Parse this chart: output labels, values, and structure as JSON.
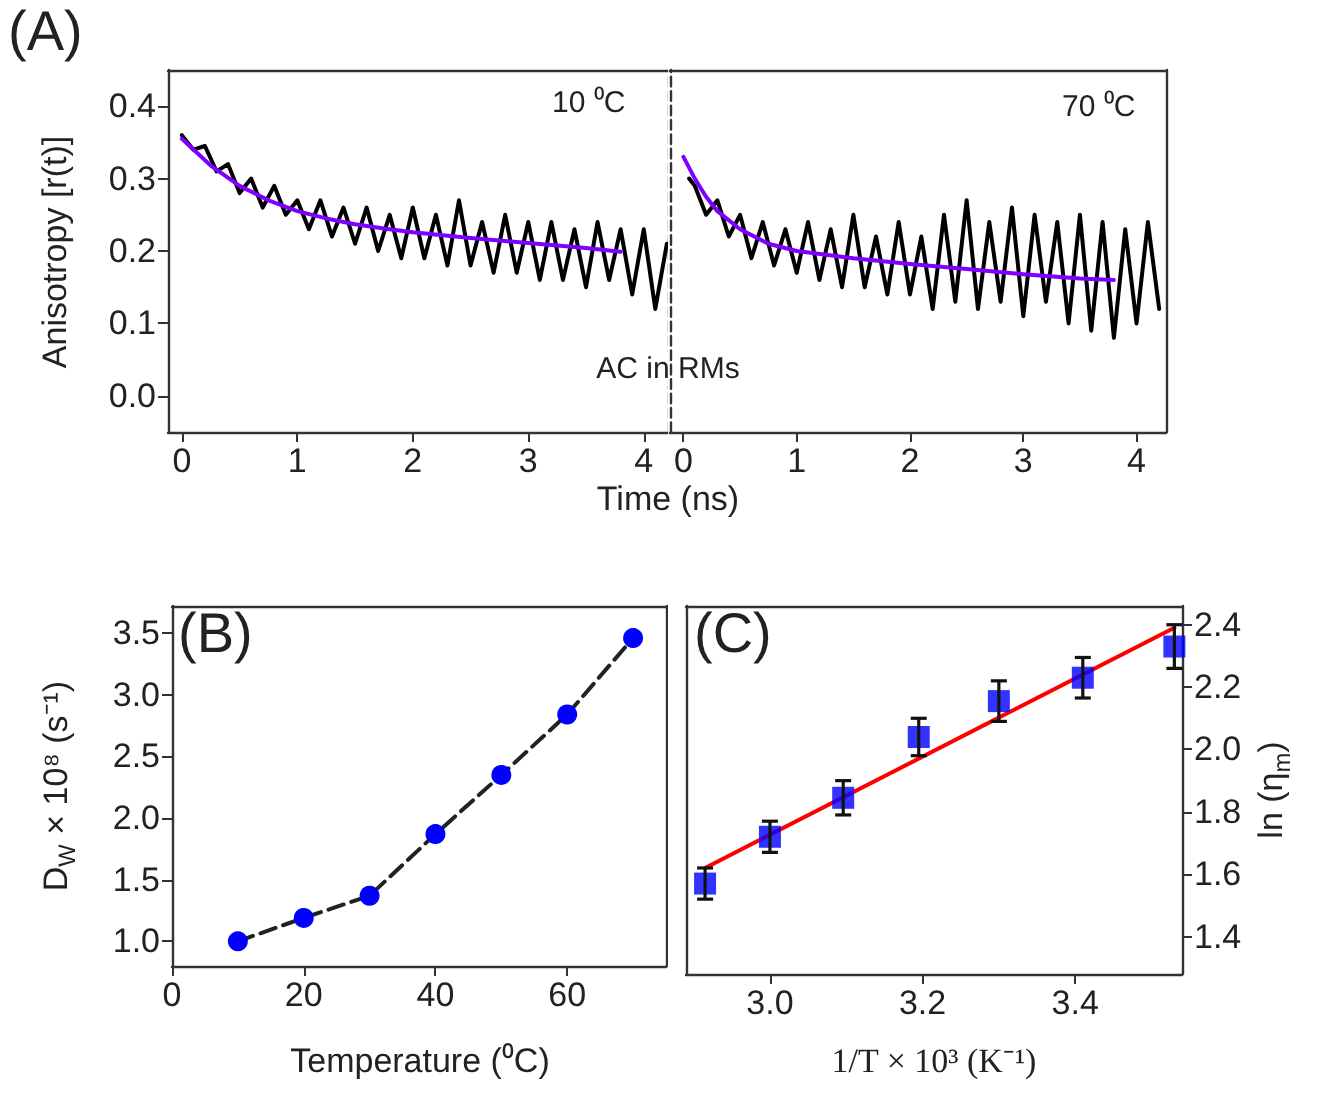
{
  "chart_data": [
    {
      "type": "line",
      "title": "(A)",
      "ylabel": "Anisotropy [r(t)]",
      "xlabel": "Time (ns)",
      "annotations": [
        "10 ⁰C",
        "AC in RMs"
      ],
      "xlim": [
        -0.12,
        4.21
      ],
      "xticks": [
        0,
        1,
        2,
        3,
        4
      ],
      "ylim": [
        -0.05,
        0.45
      ],
      "yticks": [
        {
          "value": 0,
          "label": "0.0"
        },
        0.1,
        0.2,
        0.3,
        0.4
      ],
      "marker": "none",
      "line_style": "solid",
      "series": [
        {
          "color": "#000000",
          "x": [
            0,
            0.1,
            0.2,
            0.3,
            0.4,
            0.5,
            0.6,
            0.7,
            0.8,
            0.9,
            1.0,
            1.1,
            1.2,
            1.3,
            1.4,
            1.5,
            1.6,
            1.7,
            1.8,
            1.9,
            2.0,
            2.1,
            2.2,
            2.3,
            2.4,
            2.5,
            2.6,
            2.7,
            2.8,
            2.9,
            3.0,
            3.1,
            3.2,
            3.3,
            3.4,
            3.5,
            3.6,
            3.7,
            3.8,
            3.9,
            4.0,
            4.1,
            4.2
          ],
          "values": [
            0.36,
            0.34,
            0.345,
            0.31,
            0.32,
            0.28,
            0.3,
            0.26,
            0.29,
            0.25,
            0.27,
            0.23,
            0.27,
            0.22,
            0.26,
            0.21,
            0.26,
            0.2,
            0.25,
            0.19,
            0.26,
            0.19,
            0.25,
            0.18,
            0.27,
            0.18,
            0.24,
            0.17,
            0.25,
            0.17,
            0.24,
            0.16,
            0.24,
            0.16,
            0.23,
            0.15,
            0.24,
            0.16,
            0.23,
            0.14,
            0.23,
            0.12,
            0.21
          ]
        },
        {
          "color": "#7f00ff",
          "x": [
            0,
            0.25,
            0.5,
            0.75,
            1,
            1.25,
            1.5,
            1.75,
            2,
            2.5,
            3,
            3.5,
            3.8
          ],
          "values": [
            0.355,
            0.318,
            0.29,
            0.27,
            0.255,
            0.245,
            0.237,
            0.231,
            0.226,
            0.218,
            0.211,
            0.204,
            0.199
          ]
        }
      ]
    },
    {
      "type": "line",
      "annotations": [
        "70 ⁰C"
      ],
      "xlim": [
        -0.12,
        4.26
      ],
      "xticks": [
        0,
        1,
        2,
        3,
        4
      ],
      "ylim": [
        -0.05,
        0.45
      ],
      "tick_labels": "x",
      "marker": "none",
      "line_style": "solid",
      "series": [
        {
          "color": "#000000",
          "x": [
            0.05,
            0.1,
            0.2,
            0.3,
            0.4,
            0.5,
            0.6,
            0.7,
            0.8,
            0.9,
            1.0,
            1.1,
            1.2,
            1.3,
            1.4,
            1.5,
            1.6,
            1.7,
            1.8,
            1.9,
            2.0,
            2.1,
            2.2,
            2.3,
            2.4,
            2.5,
            2.6,
            2.7,
            2.8,
            2.9,
            3.0,
            3.1,
            3.2,
            3.3,
            3.4,
            3.5,
            3.6,
            3.7,
            3.8,
            3.9,
            4.0,
            4.1,
            4.2
          ],
          "values": [
            0.3,
            0.29,
            0.25,
            0.27,
            0.22,
            0.25,
            0.19,
            0.24,
            0.18,
            0.23,
            0.17,
            0.24,
            0.16,
            0.23,
            0.15,
            0.25,
            0.15,
            0.22,
            0.14,
            0.24,
            0.14,
            0.22,
            0.12,
            0.25,
            0.13,
            0.27,
            0.12,
            0.24,
            0.13,
            0.26,
            0.11,
            0.25,
            0.13,
            0.24,
            0.1,
            0.25,
            0.09,
            0.24,
            0.08,
            0.23,
            0.1,
            0.24,
            0.12
          ]
        },
        {
          "color": "#7f00ff",
          "x": [
            0,
            0.1,
            0.2,
            0.3,
            0.5,
            0.75,
            1,
            1.5,
            2,
            2.5,
            3,
            3.5,
            3.8
          ],
          "values": [
            0.33,
            0.3,
            0.275,
            0.255,
            0.23,
            0.21,
            0.2,
            0.19,
            0.182,
            0.175,
            0.168,
            0.162,
            0.16
          ]
        }
      ]
    },
    {
      "type": "line",
      "title": "(B)",
      "xlabel": "Temperature (⁰C)",
      "ylabel": "D$_{W}$ × 10⁸ (s⁻¹)",
      "xlim": [
        0,
        75
      ],
      "xticks": [
        0,
        20,
        40,
        60
      ],
      "ylim": [
        0.8,
        3.72
      ],
      "yticks": [
        {
          "value": 1,
          "label": "1.0"
        },
        1.5,
        {
          "value": 2,
          "label": "2.0"
        },
        2.5,
        {
          "value": 3,
          "label": "3.0"
        },
        3.5
      ],
      "marker": "circle",
      "line_style": "dashed",
      "series": [
        {
          "color": "#0000ff",
          "x": [
            10,
            20,
            30,
            40,
            50,
            60,
            70
          ],
          "values": [
            1.0,
            1.19,
            1.37,
            1.87,
            2.35,
            2.84,
            3.46
          ]
        }
      ]
    },
    {
      "type": "scatter",
      "title": "(C)",
      "xlabel": "1/T × 10³ (K⁻¹)",
      "ylabel": "ln (η$_{m}$)",
      "xlim": [
        2.89,
        3.54
      ],
      "xticks": [
        {
          "value": 3,
          "label": "3.0"
        },
        3.2,
        3.4
      ],
      "ylim": [
        1.28,
        2.46
      ],
      "yticks": [
        1.4,
        1.6,
        1.8,
        {
          "value": 2,
          "label": "2.0"
        },
        2.2,
        2.4
      ],
      "series": [
        {
          "color": "#0000ff",
          "marker": "square",
          "x": [
            2.915,
            3.0,
            3.096,
            3.195,
            3.3,
            3.41,
            3.53
          ],
          "values": [
            1.57,
            1.72,
            1.845,
            2.04,
            2.155,
            2.23,
            2.33
          ],
          "errors": [
            0.05,
            0.05,
            0.055,
            0.06,
            0.065,
            0.065,
            0.07
          ]
        },
        {
          "type": "line",
          "color": "#ff0000",
          "marker": "none",
          "line_style": "solid",
          "x": [
            2.915,
            3.53
          ],
          "values": [
            1.62,
            2.39
          ]
        }
      ]
    }
  ]
}
